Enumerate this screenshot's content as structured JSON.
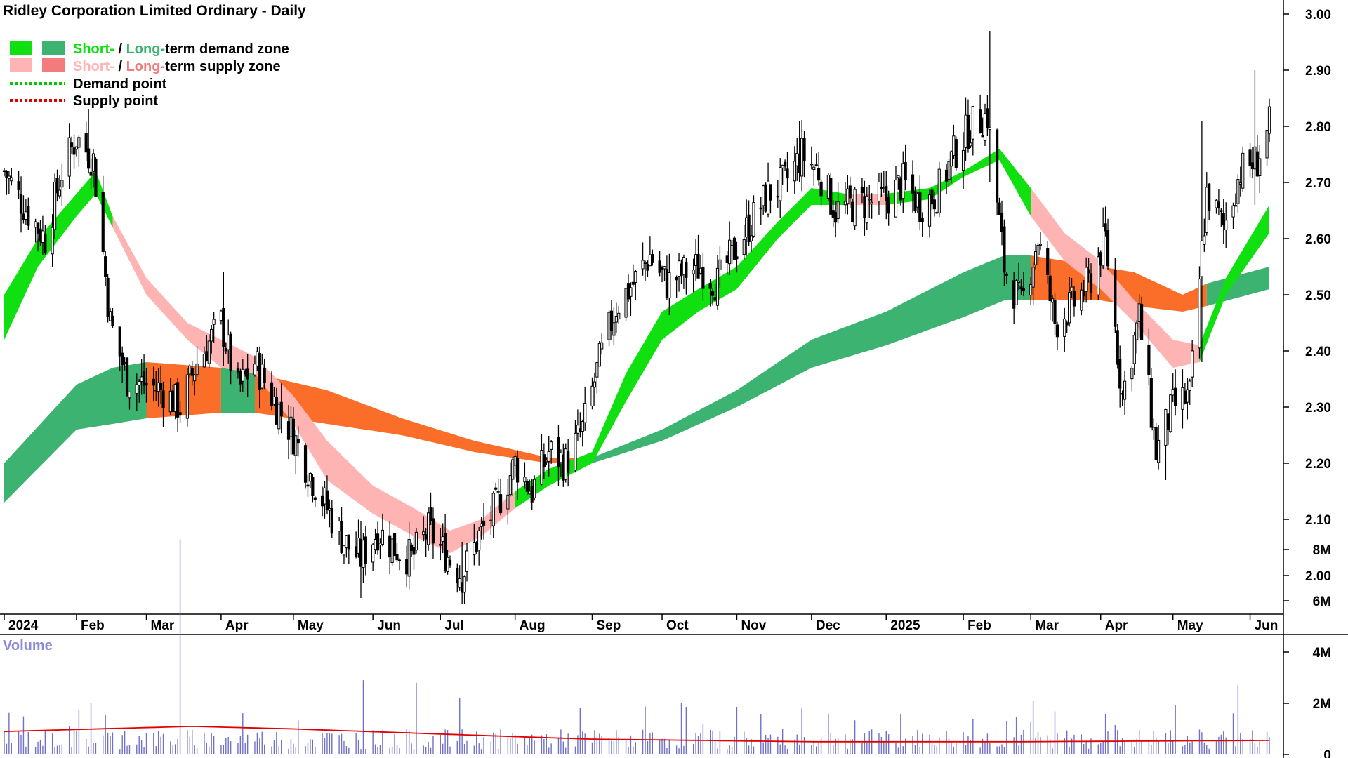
{
  "chart_data": [
    {
      "type": "candlestick",
      "title": "Ridley Corporation Limited Ordinary - Daily",
      "ylim": [
        1.95,
        3.02
      ],
      "y_ticks": [
        "3.00",
        "2.90",
        "2.80",
        "2.70",
        "2.60",
        "2.50",
        "2.40",
        "2.30",
        "2.20",
        "2.10",
        "2.00"
      ],
      "y_tick_values": [
        3.0,
        2.9,
        2.8,
        2.7,
        2.6,
        2.5,
        2.4,
        2.3,
        2.2,
        2.1,
        2.0
      ],
      "x_ticks": [
        "2024",
        "Feb",
        "Mar",
        "Apr",
        "May",
        "Jun",
        "Jul",
        "Aug",
        "Sep",
        "Oct",
        "Nov",
        "Dec",
        "2025",
        "Feb",
        "Mar",
        "Apr",
        "May",
        "Jun"
      ],
      "x_tick_dates": [
        "2024-01-02",
        "2024-02-01",
        "2024-03-01",
        "2024-04-01",
        "2024-05-01",
        "2024-06-03",
        "2024-07-01",
        "2024-08-01",
        "2024-09-02",
        "2024-10-01",
        "2024-11-01",
        "2024-12-02",
        "2025-01-02",
        "2025-02-03",
        "2025-03-03",
        "2025-04-01",
        "2025-05-01",
        "2025-06-02"
      ],
      "x_range": [
        "2024-01-02",
        "2025-06-10"
      ],
      "legend": {
        "placement": "top-left",
        "demand_zone": {
          "short": "Short-",
          "sep": " / ",
          "long": "Long-",
          "suffix": "term demand zone"
        },
        "supply_zone": {
          "short": "Short-",
          "sep": " / ",
          "long": "Long-",
          "suffix": "term supply zone"
        },
        "demand_point": "Demand point",
        "supply_point": "Supply point"
      },
      "colors": {
        "short_demand": "#10e010",
        "long_demand": "#3cb371",
        "short_supply": "#ffb4b4",
        "long_supply": "#fa6e2a",
        "candle": "#000000",
        "demand_point": "#00c800",
        "supply_point": "#e00000"
      },
      "price_path": [
        [
          "2024-01-02",
          2.72
        ],
        [
          "2024-01-10",
          2.66
        ],
        [
          "2024-01-19",
          2.6
        ],
        [
          "2024-01-26",
          2.72
        ],
        [
          "2024-02-01",
          2.78
        ],
        [
          "2024-02-08",
          2.74
        ],
        [
          "2024-02-15",
          2.45
        ],
        [
          "2024-02-22",
          2.35
        ],
        [
          "2024-03-01",
          2.34
        ],
        [
          "2024-03-08",
          2.33
        ],
        [
          "2024-03-15",
          2.3
        ],
        [
          "2024-03-22",
          2.38
        ],
        [
          "2024-04-01",
          2.45
        ],
        [
          "2024-04-08",
          2.33
        ],
        [
          "2024-04-15",
          2.38
        ],
        [
          "2024-04-22",
          2.32
        ],
        [
          "2024-05-01",
          2.25
        ],
        [
          "2024-05-08",
          2.18
        ],
        [
          "2024-05-15",
          2.12
        ],
        [
          "2024-05-22",
          2.06
        ],
        [
          "2024-05-29",
          2.03
        ],
        [
          "2024-06-05",
          2.08
        ],
        [
          "2024-06-12",
          2.05
        ],
        [
          "2024-06-19",
          2.03
        ],
        [
          "2024-06-26",
          2.08
        ],
        [
          "2024-07-03",
          2.04
        ],
        [
          "2024-07-10",
          2.0
        ],
        [
          "2024-07-17",
          2.07
        ],
        [
          "2024-07-24",
          2.12
        ],
        [
          "2024-08-01",
          2.2
        ],
        [
          "2024-08-08",
          2.15
        ],
        [
          "2024-08-15",
          2.22
        ],
        [
          "2024-08-22",
          2.2
        ],
        [
          "2024-08-29",
          2.26
        ],
        [
          "2024-09-05",
          2.38
        ],
        [
          "2024-09-12",
          2.48
        ],
        [
          "2024-09-19",
          2.52
        ],
        [
          "2024-09-26",
          2.57
        ],
        [
          "2024-10-03",
          2.52
        ],
        [
          "2024-10-10",
          2.54
        ],
        [
          "2024-10-17",
          2.55
        ],
        [
          "2024-10-24",
          2.52
        ],
        [
          "2024-10-31",
          2.58
        ],
        [
          "2024-11-07",
          2.63
        ],
        [
          "2024-11-14",
          2.68
        ],
        [
          "2024-11-21",
          2.7
        ],
        [
          "2024-11-28",
          2.75
        ],
        [
          "2024-12-05",
          2.72
        ],
        [
          "2024-12-12",
          2.65
        ],
        [
          "2024-12-19",
          2.66
        ],
        [
          "2025-01-02",
          2.67
        ],
        [
          "2025-01-09",
          2.7
        ],
        [
          "2025-01-16",
          2.66
        ],
        [
          "2025-01-23",
          2.68
        ],
        [
          "2025-01-30",
          2.75
        ],
        [
          "2025-02-06",
          2.8
        ],
        [
          "2025-02-13",
          2.82
        ],
        [
          "2025-02-20",
          2.55
        ],
        [
          "2025-02-27",
          2.48
        ],
        [
          "2025-03-06",
          2.6
        ],
        [
          "2025-03-13",
          2.45
        ],
        [
          "2025-03-20",
          2.48
        ],
        [
          "2025-03-27",
          2.52
        ],
        [
          "2025-04-03",
          2.6
        ],
        [
          "2025-04-10",
          2.32
        ],
        [
          "2025-04-17",
          2.46
        ],
        [
          "2025-04-24",
          2.22
        ],
        [
          "2025-05-01",
          2.3
        ],
        [
          "2025-05-08",
          2.32
        ],
        [
          "2025-05-15",
          2.68
        ],
        [
          "2025-05-22",
          2.62
        ],
        [
          "2025-05-29",
          2.72
        ],
        [
          "2025-06-05",
          2.74
        ],
        [
          "2025-06-10",
          2.8
        ]
      ],
      "annotations": [
        {
          "date": "2024-02-06",
          "high": 2.83,
          "low": 2.72
        },
        {
          "date": "2024-04-02",
          "high": 2.54,
          "low": 2.42
        },
        {
          "date": "2024-05-29",
          "high": 2.05,
          "low": 1.96
        },
        {
          "date": "2024-07-10",
          "high": 2.06,
          "low": 1.96
        },
        {
          "date": "2024-11-27",
          "high": 2.81,
          "low": 2.7
        },
        {
          "date": "2025-02-14",
          "high": 2.97,
          "low": 2.7
        },
        {
          "date": "2025-04-28",
          "high": 2.25,
          "low": 2.17
        },
        {
          "date": "2025-05-13",
          "high": 2.81,
          "low": 2.38
        },
        {
          "date": "2025-06-04",
          "high": 2.9,
          "low": 2.66
        }
      ],
      "zones": {
        "short_term": [
          [
            "2024-01-02",
            2.42,
            2.5,
            "demand"
          ],
          [
            "2024-01-16",
            2.55,
            2.6,
            "demand"
          ],
          [
            "2024-02-01",
            2.64,
            2.68,
            "demand"
          ],
          [
            "2024-02-09",
            2.68,
            2.72,
            "demand"
          ],
          [
            "2024-02-16",
            2.62,
            2.64,
            "supply"
          ],
          [
            "2024-03-01",
            2.5,
            2.53,
            "supply"
          ],
          [
            "2024-03-18",
            2.42,
            2.45,
            "supply"
          ],
          [
            "2024-04-01",
            2.37,
            2.42,
            "supply"
          ],
          [
            "2024-04-15",
            2.36,
            2.39,
            "supply"
          ],
          [
            "2024-05-01",
            2.27,
            2.32,
            "supply"
          ],
          [
            "2024-05-15",
            2.17,
            2.24,
            "supply"
          ],
          [
            "2024-06-03",
            2.11,
            2.16,
            "supply"
          ],
          [
            "2024-06-20",
            2.07,
            2.12,
            "supply"
          ],
          [
            "2024-07-05",
            2.04,
            2.08,
            "supply"
          ],
          [
            "2024-07-18",
            2.07,
            2.1,
            "supply"
          ],
          [
            "2024-08-01",
            2.12,
            2.15,
            "demand"
          ],
          [
            "2024-08-15",
            2.16,
            2.19,
            "demand"
          ],
          [
            "2024-09-02",
            2.2,
            2.22,
            "demand"
          ],
          [
            "2024-09-16",
            2.31,
            2.36,
            "demand"
          ],
          [
            "2024-10-01",
            2.42,
            2.47,
            "demand"
          ],
          [
            "2024-10-16",
            2.47,
            2.51,
            "demand"
          ],
          [
            "2024-11-01",
            2.51,
            2.55,
            "demand"
          ],
          [
            "2024-11-18",
            2.6,
            2.63,
            "demand"
          ],
          [
            "2024-12-02",
            2.66,
            2.69,
            "demand"
          ],
          [
            "2024-12-16",
            2.66,
            2.68,
            "supply"
          ],
          [
            "2025-01-02",
            2.66,
            2.68,
            "demand"
          ],
          [
            "2025-01-20",
            2.67,
            2.69,
            "demand"
          ],
          [
            "2025-02-03",
            2.71,
            2.72,
            "demand"
          ],
          [
            "2025-02-18",
            2.74,
            2.76,
            "demand"
          ],
          [
            "2025-03-03",
            2.64,
            2.69,
            "supply"
          ],
          [
            "2025-03-17",
            2.56,
            2.61,
            "supply"
          ],
          [
            "2025-04-01",
            2.51,
            2.56,
            "supply"
          ],
          [
            "2025-04-15",
            2.45,
            2.49,
            "supply"
          ],
          [
            "2025-05-01",
            2.37,
            2.42,
            "supply"
          ],
          [
            "2025-05-12",
            2.38,
            2.41,
            "demand"
          ],
          [
            "2025-05-23",
            2.5,
            2.53,
            "demand"
          ],
          [
            "2025-06-10",
            2.61,
            2.66,
            "demand"
          ]
        ],
        "long_term": [
          [
            "2024-01-02",
            2.13,
            2.2,
            "demand"
          ],
          [
            "2024-02-01",
            2.26,
            2.34,
            "demand"
          ],
          [
            "2024-02-16",
            2.27,
            2.37,
            "demand"
          ],
          [
            "2024-03-01",
            2.28,
            2.38,
            "supply"
          ],
          [
            "2024-04-01",
            2.29,
            2.37,
            "demand"
          ],
          [
            "2024-04-15",
            2.29,
            2.36,
            "supply"
          ],
          [
            "2024-05-15",
            2.27,
            2.33,
            "supply"
          ],
          [
            "2024-06-15",
            2.25,
            2.28,
            "supply"
          ],
          [
            "2024-07-15",
            2.22,
            2.24,
            "supply"
          ],
          [
            "2024-08-15",
            2.2,
            2.21,
            "supply"
          ],
          [
            "2024-09-02",
            2.2,
            2.21,
            "demand"
          ],
          [
            "2024-10-01",
            2.24,
            2.26,
            "demand"
          ],
          [
            "2024-11-01",
            2.3,
            2.33,
            "demand"
          ],
          [
            "2024-12-02",
            2.37,
            2.42,
            "demand"
          ],
          [
            "2025-01-02",
            2.41,
            2.47,
            "demand"
          ],
          [
            "2025-02-03",
            2.46,
            2.54,
            "demand"
          ],
          [
            "2025-02-20",
            2.49,
            2.57,
            "demand"
          ],
          [
            "2025-03-03",
            2.49,
            2.57,
            "supply"
          ],
          [
            "2025-04-01",
            2.49,
            2.55,
            "supply"
          ],
          [
            "2025-04-15",
            2.48,
            2.54,
            "supply"
          ],
          [
            "2025-05-05",
            2.47,
            2.5,
            "supply"
          ],
          [
            "2025-05-15",
            2.48,
            2.52,
            "demand"
          ],
          [
            "2025-06-10",
            2.51,
            2.55,
            "demand"
          ]
        ]
      }
    },
    {
      "type": "bar",
      "title": "Volume",
      "ylim": [
        0,
        9000000
      ],
      "y_ticks": [
        "8M",
        "6M",
        "4M",
        "2M",
        "0"
      ],
      "y_tick_values": [
        8000000,
        6000000,
        4000000,
        2000000,
        0
      ],
      "colors": {
        "bar": "#7070c8",
        "average": "#e00000"
      },
      "spikes": [
        {
          "date": "2024-03-15",
          "value": 8400000
        },
        {
          "date": "2024-05-30",
          "value": 2900000
        },
        {
          "date": "2024-06-21",
          "value": 2800000
        },
        {
          "date": "2024-07-09",
          "value": 2200000
        },
        {
          "date": "2024-02-07",
          "value": 2000000
        },
        {
          "date": "2024-11-28",
          "value": 1800000
        },
        {
          "date": "2025-05-28",
          "value": 2700000
        },
        {
          "date": "2025-03-03",
          "value": 1300000
        }
      ],
      "average_line": [
        [
          "2024-01-02",
          900000
        ],
        [
          "2024-03-20",
          1100000
        ],
        [
          "2024-05-01",
          1000000
        ],
        [
          "2024-07-01",
          800000
        ],
        [
          "2024-09-01",
          600000
        ],
        [
          "2024-12-01",
          500000
        ],
        [
          "2025-03-01",
          500000
        ],
        [
          "2025-06-10",
          550000
        ]
      ],
      "typical_volume": 600000
    }
  ]
}
